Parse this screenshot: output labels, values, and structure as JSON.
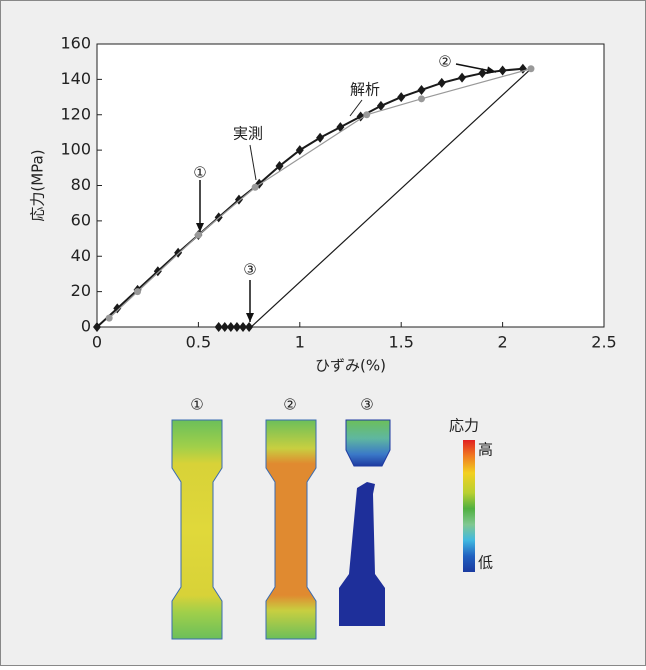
{
  "chart_data": {
    "type": "line",
    "x_label": "ひずみ(%)",
    "y_label": "応力(MPa)",
    "xlim": [
      0,
      2.5
    ],
    "xticks": [
      0,
      0.5,
      1,
      1.5,
      2,
      2.5
    ],
    "ylim": [
      0,
      160
    ],
    "yticks": [
      0,
      20,
      40,
      60,
      80,
      100,
      120,
      140,
      160
    ],
    "series": [
      {
        "name": "解析",
        "color": "#1a1a1a",
        "marker": "diamond",
        "x": [
          0,
          0.1,
          0.2,
          0.3,
          0.4,
          0.5,
          0.6,
          0.7,
          0.8,
          0.9,
          1.0,
          1.1,
          1.2,
          1.3,
          1.4,
          1.5,
          1.6,
          1.7,
          1.8,
          1.9,
          2.0,
          2.1,
          null,
          0.6,
          0.63,
          0.66,
          0.69,
          0.72,
          0.75
        ],
        "values": [
          0,
          10.5,
          21,
          31.5,
          42,
          52,
          62,
          72,
          81,
          91,
          100,
          107,
          113,
          119,
          125,
          130,
          134,
          138,
          141,
          143.5,
          145,
          146,
          null,
          0,
          0,
          0,
          0,
          0,
          0
        ]
      },
      {
        "name": "実測",
        "color": "#999999",
        "marker": "circle",
        "x": [
          0.06,
          0.2,
          0.5,
          0.78,
          1.33,
          1.6,
          2.14
        ],
        "values": [
          5,
          20,
          52,
          79,
          120,
          129,
          146
        ]
      },
      {
        "color": "#1a1a1a",
        "marker": "none",
        "x": [
          2.14,
          0.76
        ],
        "values": [
          146,
          0
        ]
      }
    ],
    "annotations": [
      "①",
      "②",
      "③"
    ]
  },
  "contour": {
    "labels": [
      "①",
      "②",
      "③"
    ],
    "legend_title": "応力",
    "high": "高",
    "low": "低"
  }
}
